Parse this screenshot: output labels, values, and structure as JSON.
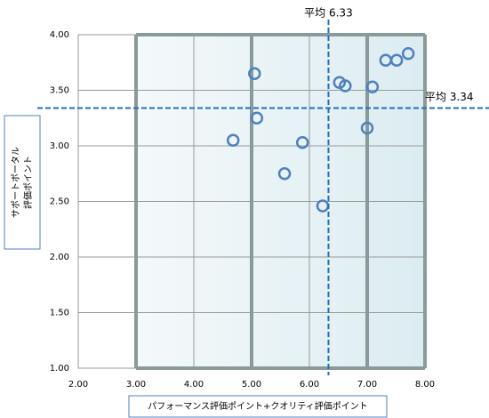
{
  "chart_data": {
    "type": "scatter",
    "x_label": "パフォーマンス評価ポイント+クオリティ評価ポイント",
    "y_label": [
      "サポートポータル",
      "評価ポイント"
    ],
    "series": [
      {
        "name": null,
        "color": "#4f81bd",
        "x": [
          5.05,
          4.68,
          5.09,
          5.57,
          5.88,
          6.23,
          6.52,
          6.62,
          7.0,
          7.09,
          7.32,
          7.51,
          7.71
        ],
        "values": [
          3.65,
          3.05,
          3.25,
          2.75,
          3.03,
          2.46,
          3.57,
          3.54,
          3.16,
          3.53,
          3.77,
          3.77,
          3.83
        ]
      }
    ],
    "xlim": [
      2,
      8
    ],
    "ylim": [
      1,
      4
    ],
    "xticks": [
      {
        "value": 2,
        "label": "2.00"
      },
      {
        "value": 3,
        "label": "3.00"
      },
      {
        "value": 4,
        "label": "4.00"
      },
      {
        "value": 5,
        "label": "5.00"
      },
      {
        "value": 6,
        "label": "6.00"
      },
      {
        "value": 7,
        "label": "7.00"
      },
      {
        "value": 8,
        "label": "8.00"
      }
    ],
    "yticks": [
      {
        "value": 1,
        "label": "1.00"
      },
      {
        "value": 1.5,
        "label": "1.50"
      },
      {
        "value": 2,
        "label": "2.00"
      },
      {
        "value": 2.5,
        "label": "2.50"
      },
      {
        "value": 3,
        "label": "3.00"
      },
      {
        "value": 3.5,
        "label": "3.50"
      },
      {
        "value": 4,
        "label": "4.00"
      }
    ],
    "x_mean": {
      "value": 6.33,
      "label": "平均 6.33"
    },
    "y_mean": {
      "value": 3.34,
      "label": "平均 3.34"
    },
    "grid": true
  }
}
